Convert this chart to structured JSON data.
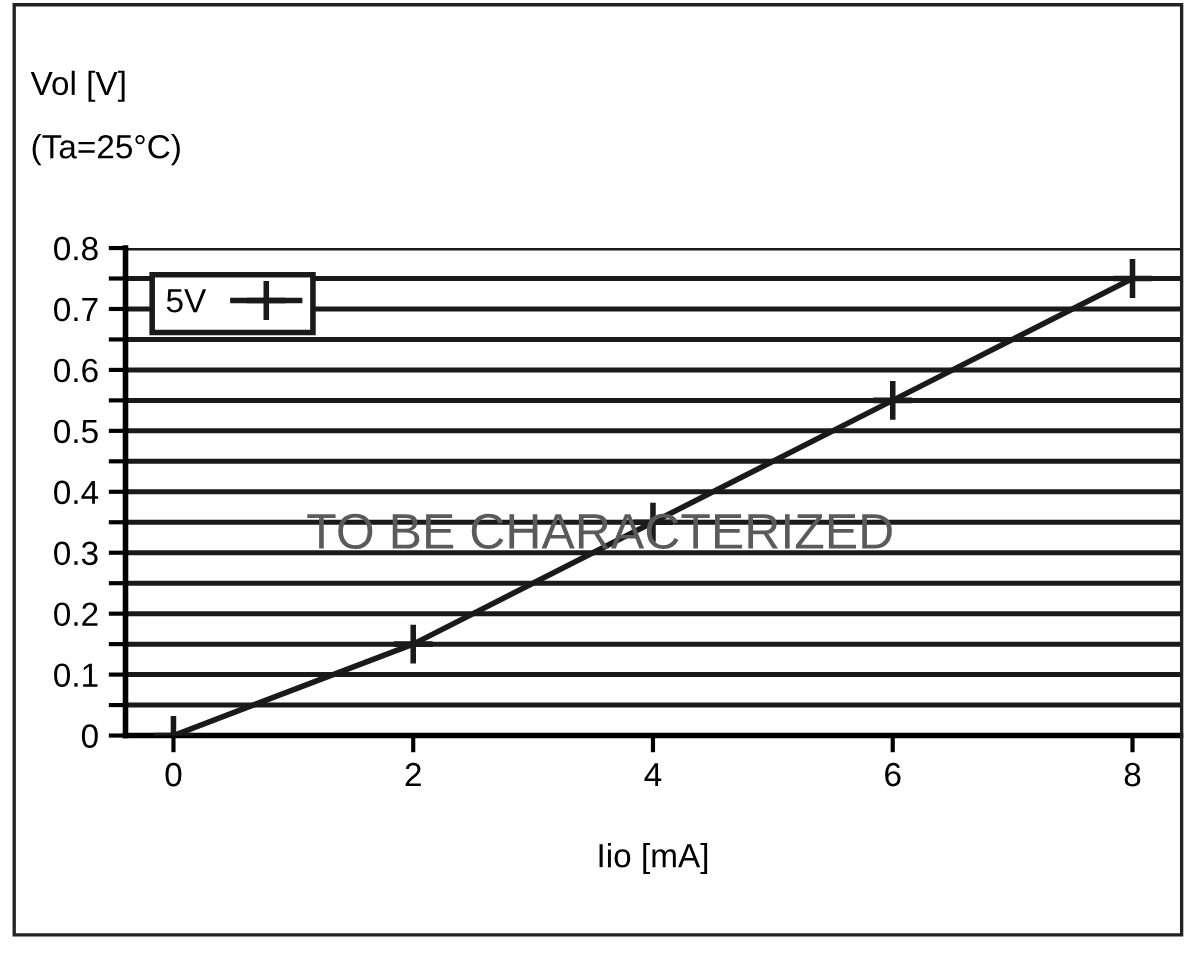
{
  "chart_data": {
    "type": "line",
    "xlabel": "Iio [mA]",
    "ylabel": "Vol [V]",
    "annotations": [
      "(Ta=25°C)",
      "TO BE CHARACTERIZED"
    ],
    "x": [
      0,
      2,
      4,
      6,
      8
    ],
    "series": [
      {
        "name": "5V",
        "color": "#1a1a1a",
        "values": [
          0,
          0.15,
          0.35,
          0.55,
          0.75
        ]
      }
    ],
    "xlim": [
      -0.4,
      8.4
    ],
    "xticks": [
      0,
      2,
      4,
      6,
      8
    ],
    "ylim": [
      0,
      0.8
    ],
    "yticks": [
      0,
      {
        "value": 0.05,
        "label": null
      },
      0.1,
      {
        "value": 0.15,
        "label": null
      },
      0.2,
      {
        "value": 0.25,
        "label": null
      },
      0.3,
      {
        "value": 0.35,
        "label": null
      },
      0.4,
      {
        "value": 0.45,
        "label": null
      },
      0.5,
      {
        "value": 0.55,
        "label": null
      },
      0.6,
      {
        "value": 0.65,
        "label": null
      },
      0.7,
      {
        "value": 0.75,
        "label": null
      },
      0.8
    ],
    "grid": "y",
    "legend": "top left",
    "marker": "cross",
    "line_style": "solid"
  }
}
